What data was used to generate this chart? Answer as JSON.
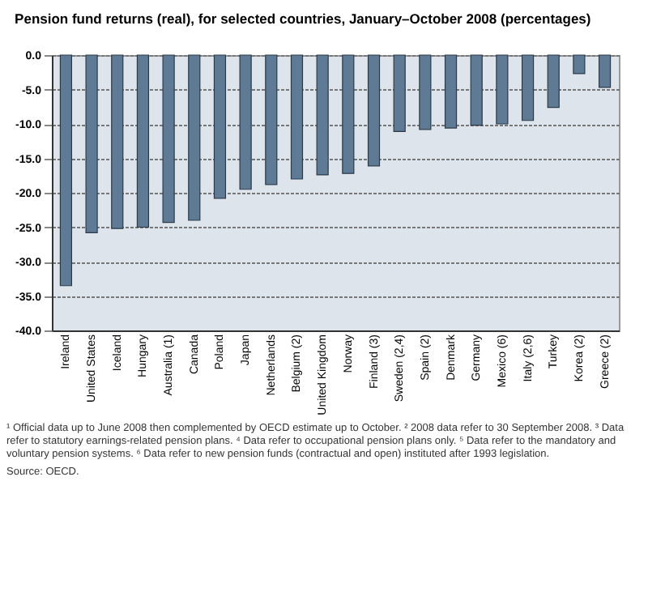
{
  "chart_data": {
    "type": "bar",
    "title": "Pension fund returns (real), for selected countries, January–October 2008 (percentages)",
    "categories": [
      "Ireland",
      "United States",
      "Iceland",
      "Hungary",
      "Australia (1)",
      "Canada",
      "Poland",
      "Japan",
      "Netherlands",
      "Belgium (2)",
      "United Kingdom",
      "Norway",
      "Finland (3)",
      "Sweden (2,4)",
      "Spain (2)",
      "Denmark",
      "Germany",
      "Mexico (6)",
      "Italy (2,6)",
      "Turkey",
      "Korea (2)",
      "Greece (2)"
    ],
    "values": [
      -33.5,
      -25.8,
      -25.2,
      -25.0,
      -24.3,
      -24.0,
      -20.8,
      -19.5,
      -18.8,
      -18.0,
      -17.4,
      -17.2,
      -16.1,
      -11.1,
      -10.8,
      -10.6,
      -10.2,
      -10.0,
      -9.5,
      -7.6,
      -2.7,
      -4.7
    ],
    "color": "#5f7a94",
    "ylim": [
      -40,
      0
    ],
    "yticks": [
      {
        "value": -40,
        "label": "-40.0"
      },
      {
        "value": -35,
        "label": "-35.0"
      },
      {
        "value": -30,
        "label": "-30.0"
      },
      {
        "value": -25,
        "label": "-25.0"
      },
      {
        "value": -20,
        "label": "-20.0"
      },
      {
        "value": -15,
        "label": "-15.0"
      },
      {
        "value": -10,
        "label": "-10.0"
      },
      {
        "value": -5,
        "label": "-5.0"
      },
      {
        "value": 0,
        "label": "0.0"
      }
    ],
    "grid": "y",
    "annotations": [
      "¹ Official data up to June 2008 then complemented by OECD estimate up to October. ² 2008 data refer to 30 September 2008. ³ Data refer to statutory earnings-related pension plans. ⁴ Data refer to occupational pension plans only. ⁵ Data refer to the mandatory and voluntary pension systems. ⁶ Data refer to new pension funds (contractual and open) instituted after 1993 legislation.",
      "Source: OECD."
    ]
  }
}
